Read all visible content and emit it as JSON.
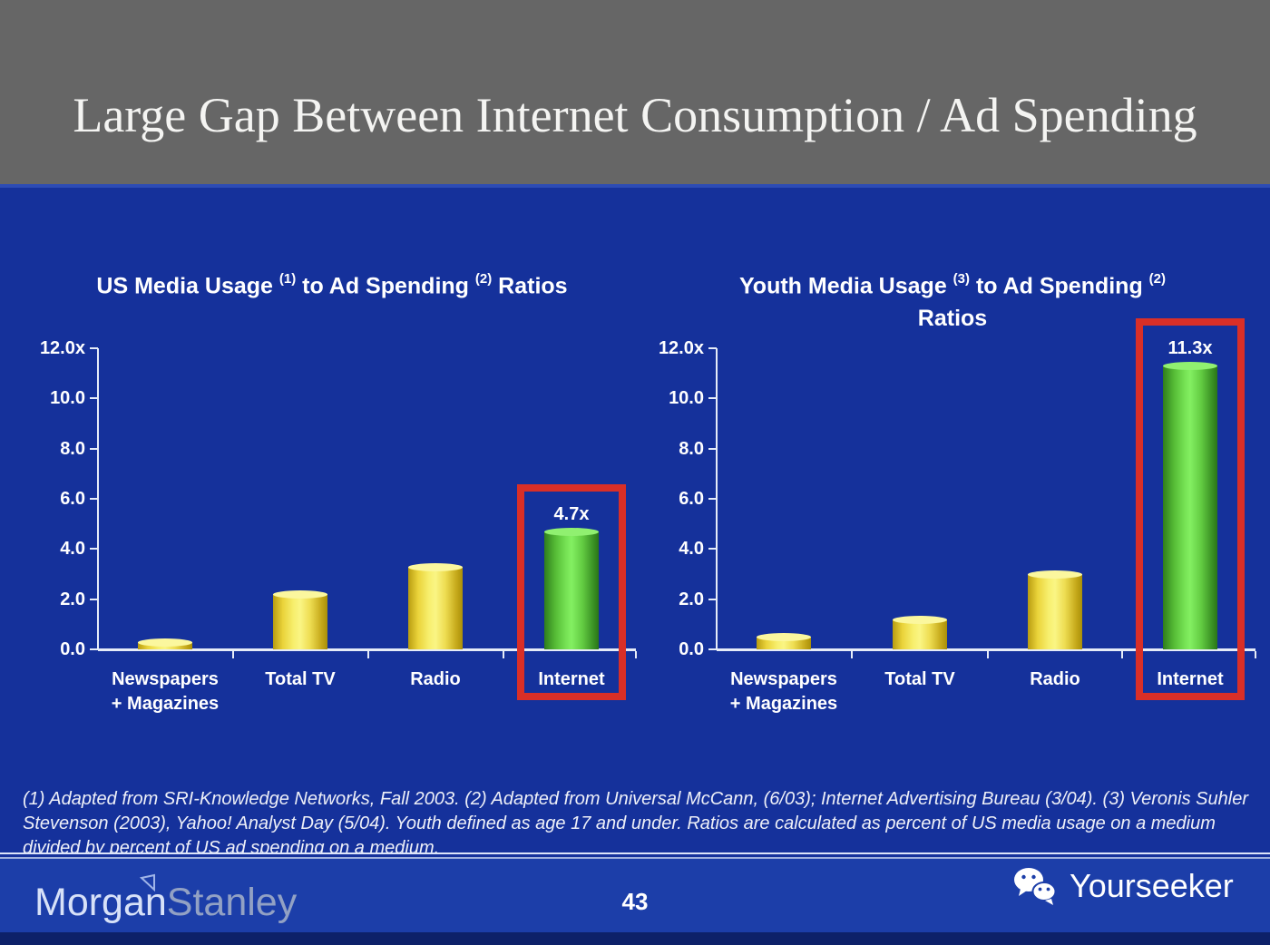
{
  "slide": {
    "title": "Large Gap Between Internet Consumption / Ad Spending",
    "page_number": "43"
  },
  "palette": {
    "header_gray": "#666666",
    "background_blue": "#15319b",
    "footer_blue": "#1c3ea9",
    "highlight_red": "#d92f27",
    "bar_yellow": "#eedd52",
    "bar_green": "#63cc42",
    "axis_white": "#e6ecf8"
  },
  "chart_data": [
    {
      "type": "bar",
      "title": "US Media Usage (1) to Ad Spending (2) Ratios",
      "title_rich": {
        "pre": "US Media Usage ",
        "sup1": "(1)",
        "mid": " to Ad Spending ",
        "sup2": "(2)",
        "post": " Ratios",
        "line2": ""
      },
      "categories": [
        "Newspapers + Magazines",
        "Total TV",
        "Radio",
        "Internet"
      ],
      "category_lines": [
        [
          "Newspapers",
          "+ Magazines"
        ],
        [
          "Total TV"
        ],
        [
          "Radio"
        ],
        [
          "Internet"
        ]
      ],
      "values": [
        0.3,
        2.2,
        3.3,
        4.7
      ],
      "bar_colors": [
        "yellow",
        "yellow",
        "yellow",
        "green"
      ],
      "y_ticks": [
        "12.0x",
        "10.0",
        "8.0",
        "6.0",
        "4.0",
        "2.0",
        "0.0"
      ],
      "y_tick_values": [
        12,
        10,
        8,
        6,
        4,
        2,
        0
      ],
      "ylim": [
        0,
        12
      ],
      "xlabel": "",
      "ylabel": "",
      "grid": false,
      "legend": null,
      "annotation": {
        "text": "4.7x",
        "category_index": 3
      },
      "highlight_box_category_index": 3
    },
    {
      "type": "bar",
      "title": "Youth Media Usage (3) to Ad Spending (2) Ratios",
      "title_rich": {
        "pre": "Youth Media Usage ",
        "sup1": "(3)",
        "mid": " to Ad Spending ",
        "sup2": "(2)",
        "post": "",
        "line2": "Ratios"
      },
      "categories": [
        "Newspapers + Magazines",
        "Total TV",
        "Radio",
        "Internet"
      ],
      "category_lines": [
        [
          "Newspapers",
          "+ Magazines"
        ],
        [
          "Total TV"
        ],
        [
          "Radio"
        ],
        [
          "Internet"
        ]
      ],
      "values": [
        0.5,
        1.2,
        3.0,
        11.3
      ],
      "bar_colors": [
        "yellow",
        "yellow",
        "yellow",
        "green"
      ],
      "y_ticks": [
        "12.0x",
        "10.0",
        "8.0",
        "6.0",
        "4.0",
        "2.0",
        "0.0"
      ],
      "y_tick_values": [
        12,
        10,
        8,
        6,
        4,
        2,
        0
      ],
      "ylim": [
        0,
        12
      ],
      "xlabel": "",
      "ylabel": "",
      "grid": false,
      "legend": null,
      "annotation": {
        "text": "11.3x",
        "category_index": 3
      },
      "highlight_box_category_index": 3
    }
  ],
  "footnote": {
    "text": "(1) Adapted from SRI-Knowledge Networks, Fall 2003.  (2) Adapted from Universal McCann, (6/03); Internet Advertising Bureau (3/04). (3) Veronis Suhler Stevenson (2003), Yahoo! Analyst Day (5/04).  Youth defined as age 17 and under.  Ratios are calculated as percent of US media usage on a medium divided by percent of US ad spending on a medium."
  },
  "footer": {
    "morgan": "Morgan",
    "stanley": "Stanley",
    "yourseeker": "Yourseeker"
  }
}
